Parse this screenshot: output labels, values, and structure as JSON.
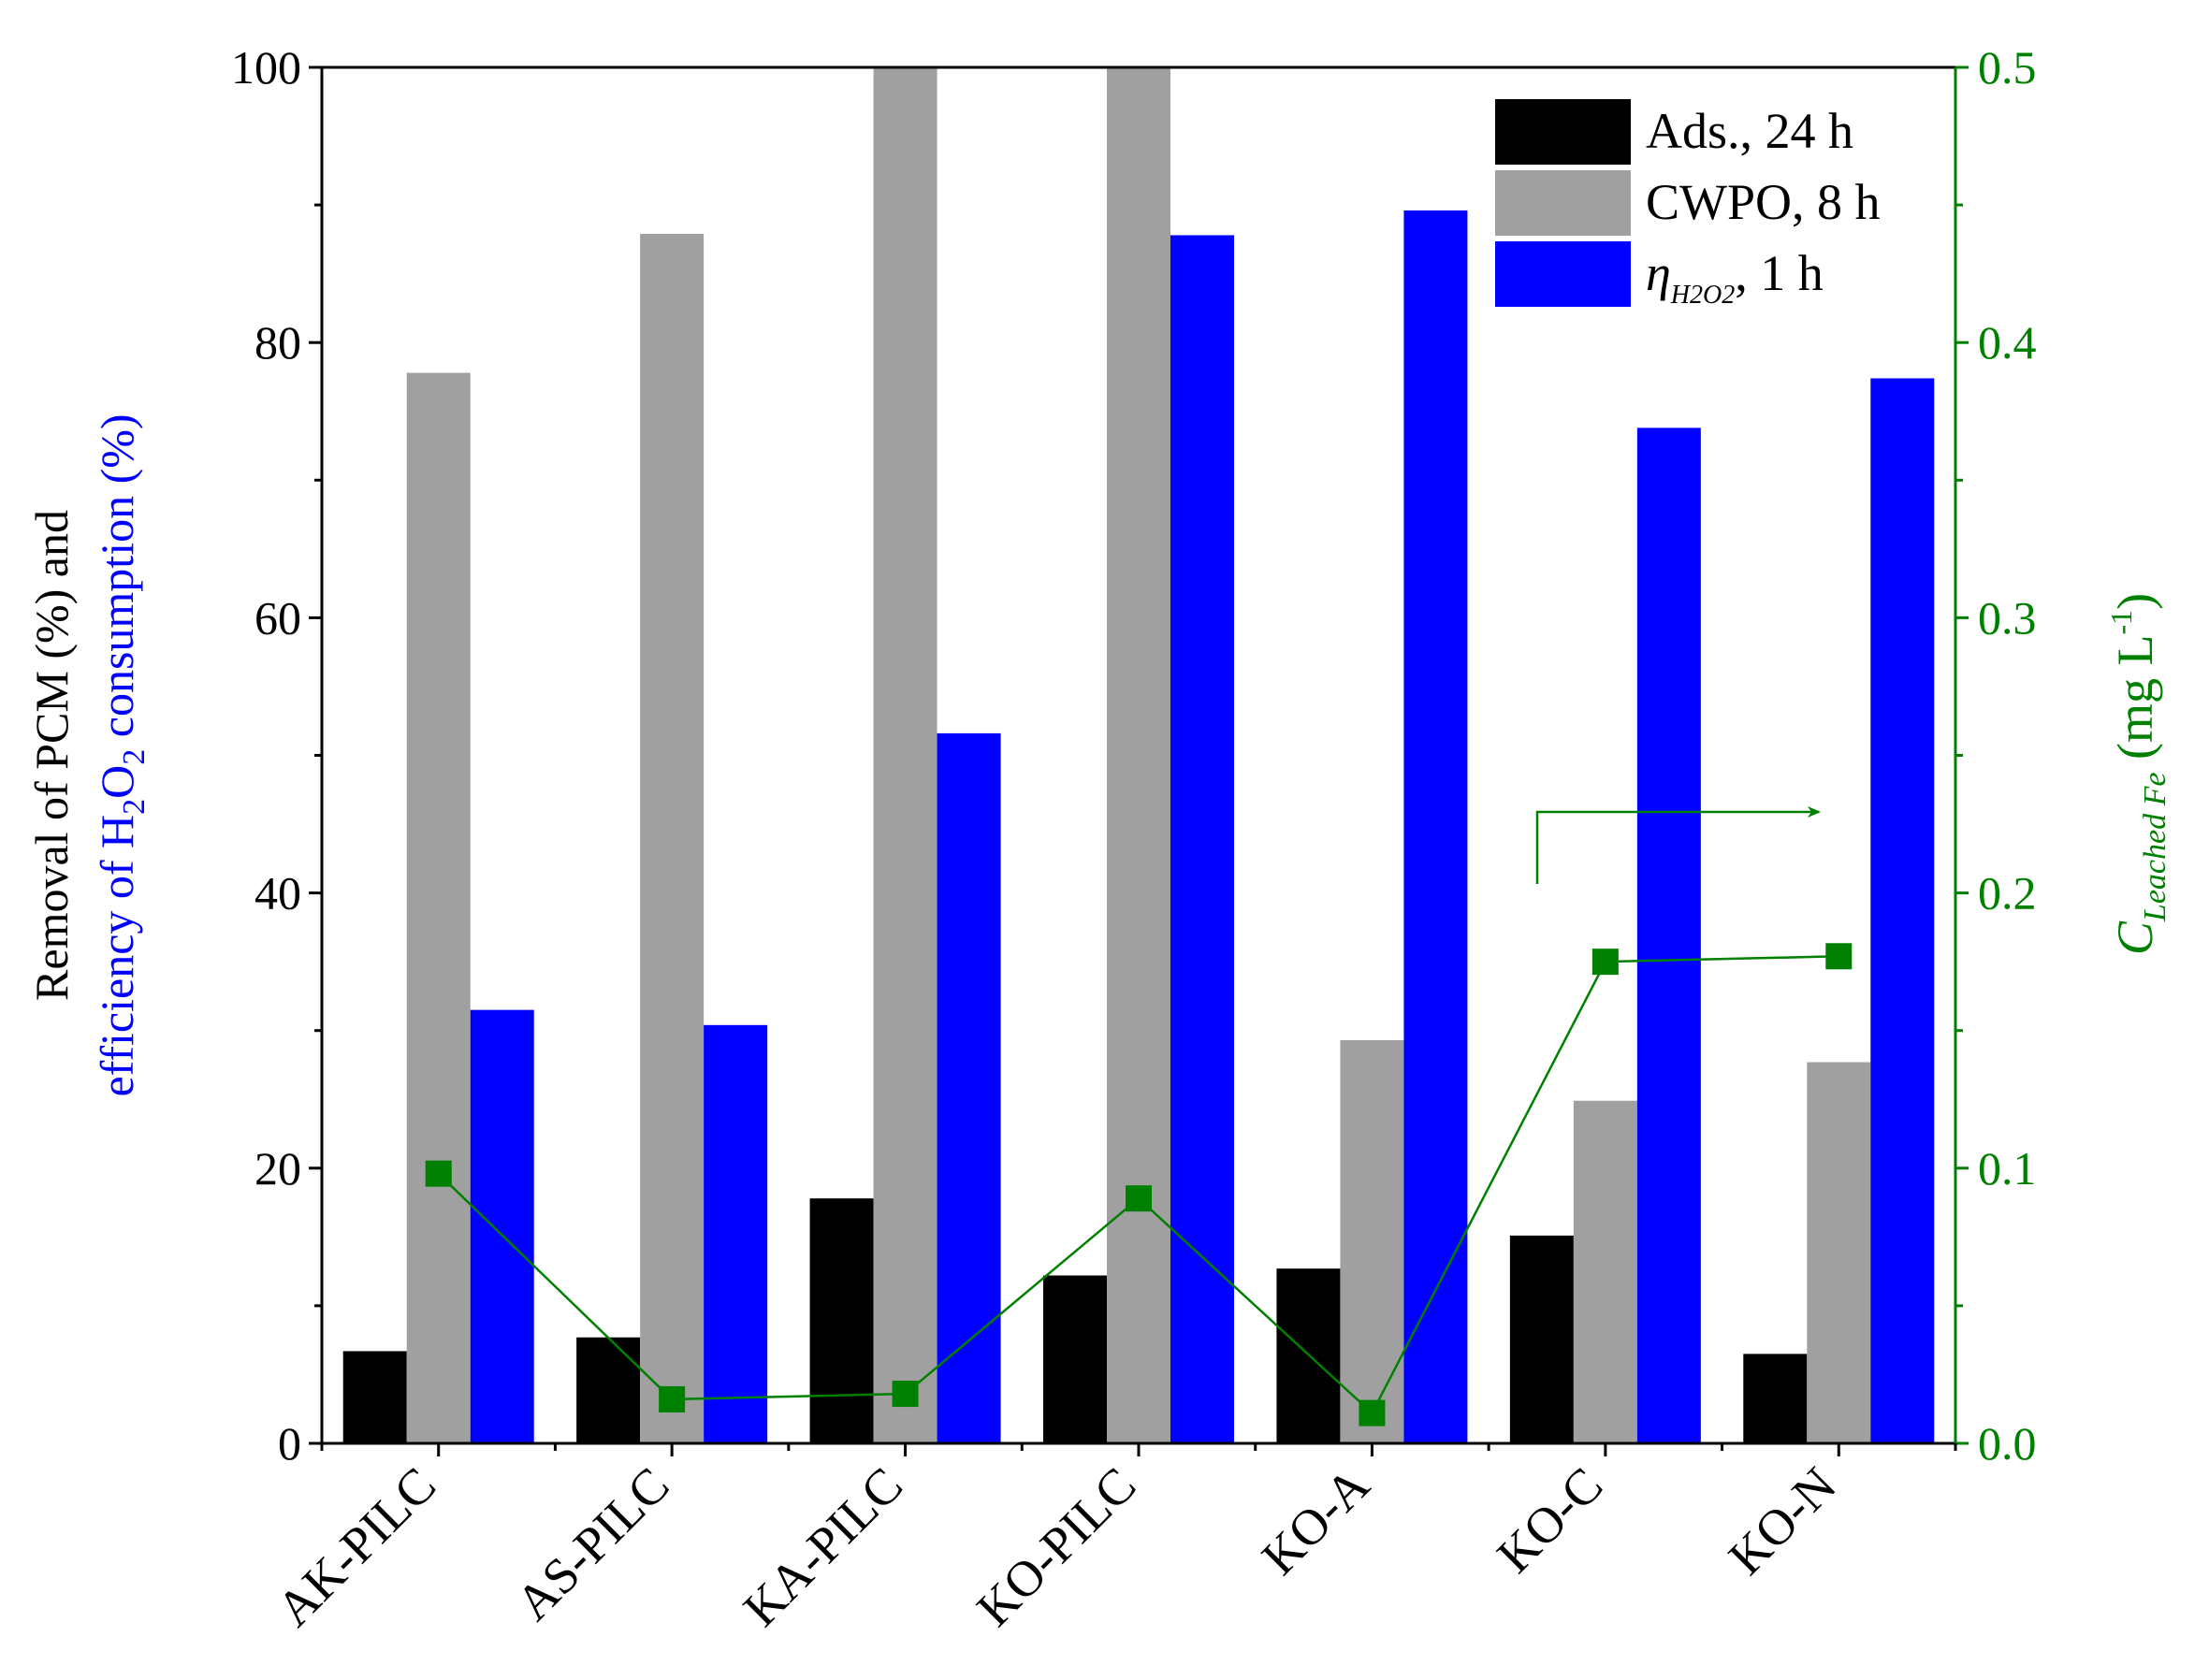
{
  "chart_data": {
    "type": "bar",
    "categories": [
      "AK-PILC",
      "AS-PILC",
      "KA-PILC",
      "KO-PILC",
      "KO-A",
      "KO-C",
      "KO-N"
    ],
    "series": [
      {
        "name": "Ads., 24 h",
        "values": [
          6.7,
          7.7,
          17.8,
          12.2,
          12.7,
          15.1,
          6.5
        ],
        "color": "#000000"
      },
      {
        "name": "CWPO, 8 h",
        "values": [
          77.8,
          87.9,
          100.0,
          100.0,
          29.3,
          24.9,
          27.7
        ],
        "color": "#a0a0a0"
      },
      {
        "name_prefix": "η",
        "name_sub": "H2O2",
        "name_suffix": ", 1 h",
        "values": [
          31.5,
          30.4,
          51.6,
          87.8,
          89.6,
          73.8,
          77.4
        ],
        "color": "#0000ff"
      }
    ],
    "line_series": {
      "axis": "right",
      "color": "#008000",
      "values": [
        0.098,
        0.016,
        0.018,
        0.089,
        0.011,
        0.175,
        0.177
      ]
    },
    "y_left": {
      "label_line1": "Removal of PCM (%) and",
      "label_line2_prefix": "efficiency of H",
      "label_line2_sub1": "2",
      "label_line2_mid": "O",
      "label_line2_sub2": "2",
      "label_line2_suffix": " consumption (%)",
      "line2_color": "#0000ff",
      "range": [
        0,
        100
      ],
      "ticks": [
        "0",
        "20",
        "40",
        "60",
        "80",
        "100"
      ]
    },
    "y_right": {
      "label_main": "C",
      "label_sub": "Leached Fe",
      "label_unit": " (mg L",
      "label_sup": "-1",
      "label_close": ")",
      "color": "#008000",
      "range": [
        0,
        0.5
      ],
      "ticks": [
        "0.0",
        "0.1",
        "0.2",
        "0.3",
        "0.4",
        "0.5"
      ]
    },
    "legend_position": "top-right",
    "grid": false
  }
}
